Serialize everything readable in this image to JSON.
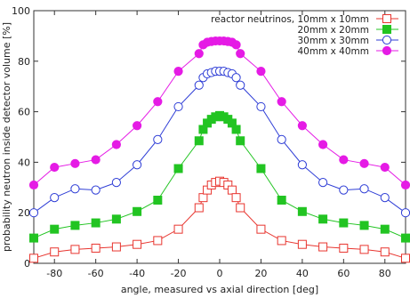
{
  "chart_data": {
    "type": "line",
    "xlabel": "angle, measured vs axial direction [deg]",
    "ylabel": "probability neutron inside detector volume [%]",
    "xlim": [
      -90,
      90
    ],
    "ylim": [
      0,
      100
    ],
    "xticks": [
      -80,
      -60,
      -40,
      -20,
      0,
      20,
      40,
      60,
      80
    ],
    "yticks": [
      0,
      20,
      40,
      60,
      80,
      100
    ],
    "grid": false,
    "legend_position": "top-right",
    "x": [
      -90,
      -80,
      -70,
      -60,
      -50,
      -40,
      -30,
      -20,
      -10,
      -8,
      -6,
      -4,
      -2,
      0,
      2,
      4,
      6,
      8,
      10,
      20,
      30,
      40,
      50,
      60,
      70,
      80,
      90
    ],
    "series": [
      {
        "name": "reactor neutrinos, 10mm x 10mm",
        "color": "#e8352f",
        "marker": "open-square",
        "values": [
          2,
          4.5,
          5.5,
          6,
          6.5,
          7.5,
          9,
          13.5,
          22,
          26,
          29,
          31,
          32,
          32.5,
          32,
          31,
          29,
          26,
          22,
          13.5,
          9,
          7.5,
          6.5,
          6,
          5.5,
          4.5,
          2
        ]
      },
      {
        "name": "20mm x 20mm",
        "color": "#22c422",
        "marker": "filled-square",
        "values": [
          10,
          13.5,
          15,
          16,
          17.5,
          20.5,
          25,
          37.5,
          48.5,
          53,
          55.5,
          57,
          58,
          58.5,
          58,
          57,
          55.5,
          53,
          48.5,
          37.5,
          25,
          20.5,
          17.5,
          16,
          15,
          13.5,
          10
        ]
      },
      {
        "name": "30mm x 30mm",
        "color": "#2f3ed6",
        "marker": "open-circle",
        "values": [
          20,
          26,
          29.5,
          29,
          32,
          39,
          49,
          62,
          70.5,
          73.5,
          75,
          75.5,
          76,
          76,
          76,
          75.5,
          75,
          73.5,
          70.5,
          62,
          49,
          39,
          32,
          29,
          29.5,
          26,
          20
        ]
      },
      {
        "name": "40mm x 40mm",
        "color": "#e51be5",
        "marker": "filled-circle",
        "values": [
          31,
          38,
          39.5,
          41,
          47,
          54.5,
          64,
          76,
          83,
          86.5,
          87.5,
          87.8,
          88,
          88,
          88,
          87.8,
          87.5,
          86.5,
          83,
          76,
          64,
          54.5,
          47,
          41,
          39.5,
          38,
          31
        ]
      }
    ]
  }
}
